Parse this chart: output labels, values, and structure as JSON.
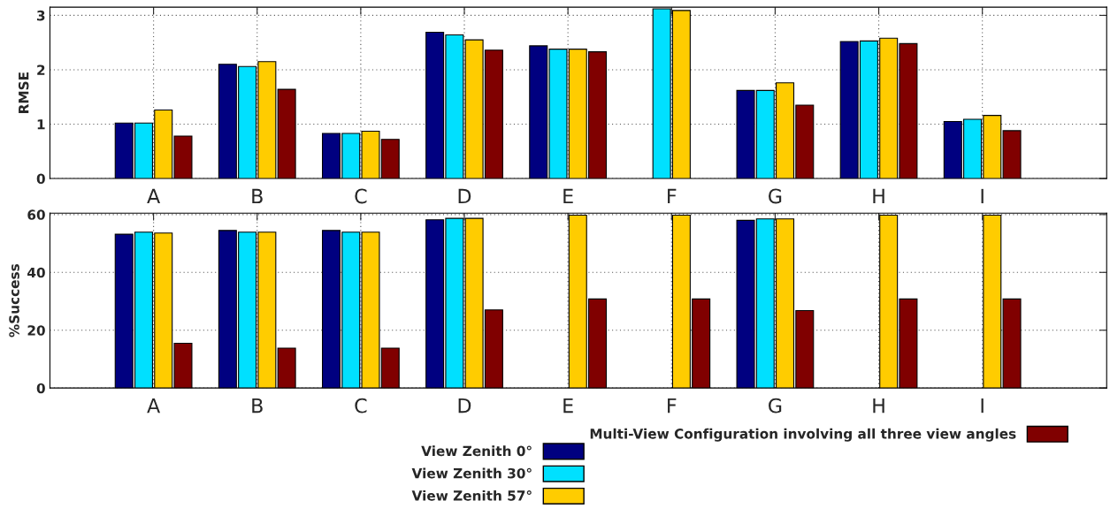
{
  "chart_data": [
    {
      "type": "bar",
      "ylabel": "RMSE",
      "categories": [
        "A",
        "B",
        "C",
        "D",
        "E",
        "F",
        "G",
        "H",
        "I"
      ],
      "ylim": [
        0,
        3.15
      ],
      "yticks": [
        0,
        1,
        2,
        3
      ],
      "grid": true,
      "series": [
        {
          "color": "#000080",
          "values": [
            1.02,
            2.1,
            0.83,
            2.69,
            2.44,
            null,
            1.62,
            2.52,
            1.05
          ]
        },
        {
          "color": "#00e0ff",
          "values": [
            1.02,
            2.06,
            0.83,
            2.64,
            2.38,
            3.12,
            1.62,
            2.53,
            1.09
          ]
        },
        {
          "color": "#ffcc00",
          "values": [
            1.26,
            2.15,
            0.87,
            2.55,
            2.38,
            3.09,
            1.76,
            2.58,
            1.16
          ]
        },
        {
          "color": "#800000",
          "values": [
            0.78,
            1.64,
            0.72,
            2.36,
            2.33,
            null,
            1.35,
            2.48,
            0.88
          ]
        }
      ]
    },
    {
      "type": "bar",
      "ylabel": "%Success",
      "categories": [
        "A",
        "B",
        "C",
        "D",
        "E",
        "F",
        "G",
        "H",
        "I"
      ],
      "ylim": [
        0,
        60.5
      ],
      "yticks": [
        0,
        20,
        40,
        60
      ],
      "grid": true,
      "legend": "bottom",
      "series": [
        {
          "name": "View Zenith 0°",
          "color": "#000080",
          "values": [
            53.2,
            54.5,
            54.5,
            58.2,
            null,
            null,
            58.0,
            null,
            null
          ]
        },
        {
          "name": "View Zenith 30°",
          "color": "#00e0ff",
          "values": [
            53.9,
            53.9,
            53.9,
            58.7,
            null,
            null,
            58.5,
            null,
            null
          ]
        },
        {
          "name": "View Zenith 57°",
          "color": "#ffcc00",
          "values": [
            53.6,
            53.9,
            53.9,
            58.7,
            59.8,
            59.8,
            58.5,
            59.8,
            59.8
          ]
        },
        {
          "name": "Multi-View Configuration involving all three view angles",
          "color": "#800000",
          "values": [
            15.5,
            13.8,
            13.8,
            27.0,
            30.8,
            30.8,
            26.8,
            30.8,
            30.8
          ]
        }
      ]
    }
  ]
}
